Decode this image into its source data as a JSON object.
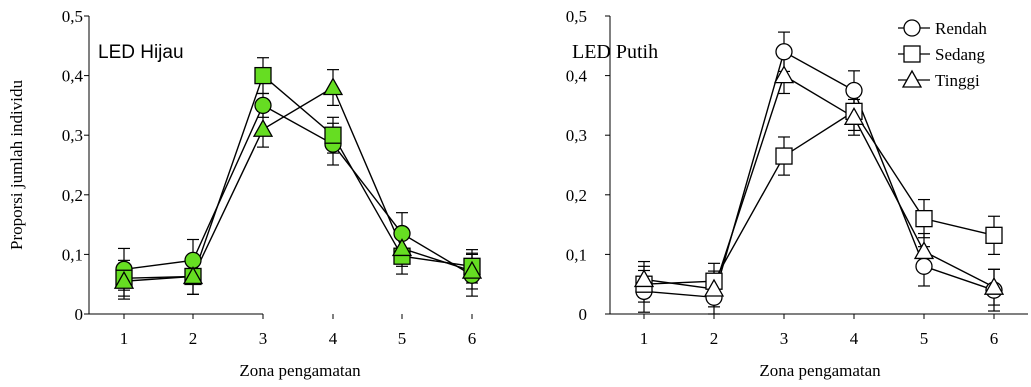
{
  "chart_data": [
    {
      "type": "line",
      "title": "LED Hijau",
      "xlabel": "Zona  pengamatan",
      "ylabel": "Proporsi jumlah individu",
      "categories": [
        "1",
        "2",
        "3",
        "4",
        "5",
        "6"
      ],
      "yticks": [
        "0",
        "0,1",
        "0,2",
        "0,3",
        "0,4",
        "0,5"
      ],
      "ylim": [
        0,
        0.5
      ],
      "marker_fill": "#66dd22",
      "line_color": "#000000",
      "series": [
        {
          "name": "Rendah",
          "marker": "circle",
          "values": [
            0.075,
            0.09,
            0.35,
            0.285,
            0.135,
            0.065
          ],
          "errors": [
            0.035,
            0.035,
            0.02,
            0.035,
            0.035,
            0.035
          ]
        },
        {
          "name": "Sedang",
          "marker": "square",
          "values": [
            0.06,
            0.063,
            0.4,
            0.3,
            0.097,
            0.08
          ],
          "errors": [
            0.03,
            0.03,
            0.03,
            0.03,
            0.03,
            0.028
          ]
        },
        {
          "name": "Tinggi",
          "marker": "triangle",
          "values": [
            0.055,
            0.063,
            0.31,
            0.38,
            0.11,
            0.072
          ],
          "errors": [
            0.03,
            0.03,
            0.03,
            0.03,
            0.03,
            0.03
          ]
        }
      ]
    },
    {
      "type": "line",
      "title": "LED Putih",
      "xlabel": "Zona  pengamatan",
      "ylabel": "",
      "categories": [
        "1",
        "2",
        "3",
        "4",
        "5",
        "6"
      ],
      "yticks": [
        "0",
        "0,1",
        "0,2",
        "0,3",
        "0,4",
        "0,5"
      ],
      "ylim": [
        0,
        0.5
      ],
      "marker_fill": "#ffffff",
      "line_color": "#000000",
      "legend": "top-right",
      "series": [
        {
          "name": "Rendah",
          "marker": "circle",
          "values": [
            0.038,
            0.028,
            0.44,
            0.375,
            0.08,
            0.04
          ],
          "errors": [
            0.035,
            0.03,
            0.033,
            0.033,
            0.033,
            0.035
          ]
        },
        {
          "name": "Sedang",
          "marker": "square",
          "values": [
            0.05,
            0.055,
            0.265,
            0.34,
            0.16,
            0.132
          ],
          "errors": [
            0.03,
            0.03,
            0.032,
            0.032,
            0.032,
            0.032
          ]
        },
        {
          "name": "Tinggi",
          "marker": "triangle",
          "values": [
            0.058,
            0.042,
            0.4,
            0.33,
            0.105,
            0.045
          ],
          "errors": [
            0.03,
            0.03,
            0.03,
            0.03,
            0.03,
            0.03
          ]
        }
      ]
    }
  ]
}
